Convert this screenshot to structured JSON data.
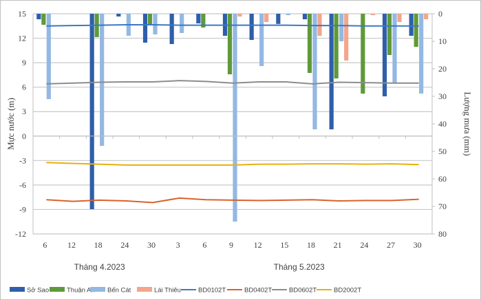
{
  "chart_data": {
    "type": "bar",
    "title": "",
    "ylabel": "Mực nước (m)",
    "y2label": "Lượng mưa (mm)",
    "xlabel": "",
    "ylim": [
      -12,
      15
    ],
    "yticks": [
      15,
      12,
      9,
      6,
      3,
      0,
      -3,
      -6,
      -9,
      -12
    ],
    "y2lim": [
      0,
      80
    ],
    "y2ticks": [
      0,
      10,
      20,
      30,
      40,
      50,
      60,
      70,
      80
    ],
    "y2_inverted": true,
    "grid": true,
    "legend_position": "bottom",
    "categories": [
      "6",
      "12",
      "18",
      "24",
      "30",
      "3",
      "6",
      "9",
      "12",
      "15",
      "18",
      "21",
      "24",
      "27",
      "30"
    ],
    "month_labels": [
      {
        "label": "Tháng 4.2023",
        "span": [
          0,
          4
        ]
      },
      {
        "label": "Tháng 5.2023",
        "span": [
          5,
          14
        ]
      }
    ],
    "bar_series": [
      {
        "name": "Sở Sao",
        "color": "#2e5faa",
        "axis": "right",
        "values": [
          2,
          0,
          71,
          1,
          10.5,
          11,
          3.5,
          8,
          9.5,
          3.7,
          2,
          42,
          0,
          30,
          8
        ]
      },
      {
        "name": "Thuận An",
        "color": "#5f9a3a",
        "axis": "right",
        "values": [
          4,
          0,
          8.5,
          0,
          4,
          0,
          5,
          22,
          0,
          0,
          21.5,
          23.5,
          29,
          15,
          12
        ]
      },
      {
        "name": "Bến Cát",
        "color": "#93b8e3",
        "axis": "right",
        "values": [
          31,
          0,
          48,
          8,
          7.5,
          7,
          0,
          75.5,
          19,
          0.5,
          42,
          10,
          0,
          25,
          29
        ]
      },
      {
        "name": "Lái Thiêu",
        "color": "#f3a68a",
        "axis": "right",
        "values": [
          0,
          0,
          0,
          0,
          0,
          0,
          0,
          1,
          3,
          0,
          8,
          17,
          0.5,
          3,
          2
        ]
      }
    ],
    "line_series": [
      {
        "name": "BD0102T",
        "color": "#3a78c2",
        "axis": "left",
        "values": [
          13.5,
          13.55,
          13.6,
          13.65,
          13.65,
          13.6,
          13.6,
          13.6,
          13.6,
          13.6,
          13.55,
          13.55,
          13.5,
          13.5,
          13.5
        ]
      },
      {
        "name": "BD0402T",
        "color": "#d9622b",
        "axis": "left",
        "values": [
          -7.8,
          -8.0,
          -7.85,
          -7.95,
          -8.15,
          -7.6,
          -7.8,
          -7.85,
          -7.9,
          -7.85,
          -7.8,
          -7.95,
          -7.9,
          -7.9,
          -7.75
        ]
      },
      {
        "name": "BD0602T",
        "color": "#8c8c8c",
        "axis": "left",
        "values": [
          6.4,
          6.5,
          6.6,
          6.65,
          6.65,
          6.8,
          6.7,
          6.5,
          6.65,
          6.65,
          6.4,
          6.6,
          6.55,
          6.5,
          6.5
        ]
      },
      {
        "name": "BD2002T",
        "color": "#e8b00b",
        "axis": "left",
        "values": [
          -3.25,
          -3.35,
          -3.45,
          -3.55,
          -3.55,
          -3.55,
          -3.55,
          -3.55,
          -3.45,
          -3.45,
          -3.4,
          -3.4,
          -3.45,
          -3.4,
          -3.5
        ]
      }
    ]
  }
}
